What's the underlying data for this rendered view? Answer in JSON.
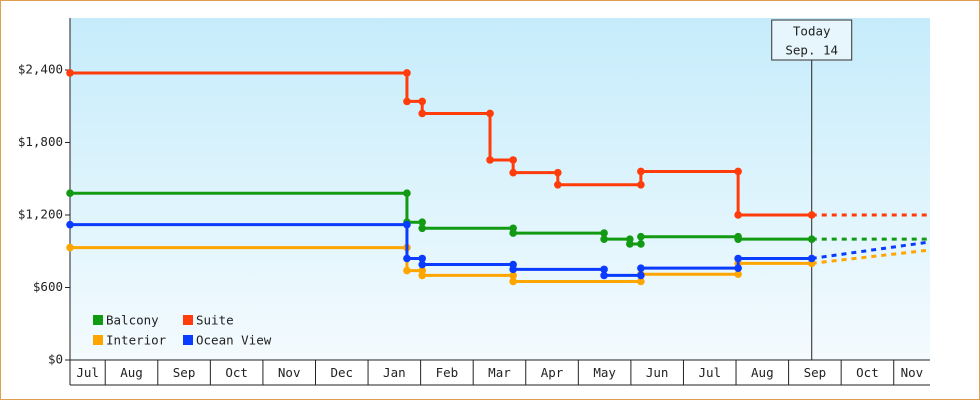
{
  "chart_data": {
    "type": "line",
    "step": true,
    "ylim": [
      0,
      2830
    ],
    "yticks": [
      {
        "value": 0,
        "label": "$0"
      },
      {
        "value": 600,
        "label": "$600"
      },
      {
        "value": 1200,
        "label": "$1,200"
      },
      {
        "value": 1800,
        "label": "$1,800"
      },
      {
        "value": 2400,
        "label": "$2,400"
      }
    ],
    "xlim": [
      0.33,
      16.69
    ],
    "xticks": [
      {
        "value": 0,
        "label": "Jul"
      },
      {
        "value": 1,
        "label": "Aug"
      },
      {
        "value": 2,
        "label": "Sep"
      },
      {
        "value": 3,
        "label": "Oct"
      },
      {
        "value": 4,
        "label": "Nov"
      },
      {
        "value": 5,
        "label": "Dec"
      },
      {
        "value": 6,
        "label": "Jan"
      },
      {
        "value": 7,
        "label": "Feb"
      },
      {
        "value": 8,
        "label": "Mar"
      },
      {
        "value": 9,
        "label": "Apr"
      },
      {
        "value": 10,
        "label": "May"
      },
      {
        "value": 11,
        "label": "Jun"
      },
      {
        "value": 12,
        "label": "Jul"
      },
      {
        "value": 13,
        "label": "Aug"
      },
      {
        "value": 14,
        "label": "Sep"
      },
      {
        "value": 15,
        "label": "Oct"
      },
      {
        "value": 16,
        "label": "Nov"
      }
    ],
    "annotation": {
      "x": 14.44,
      "lines": [
        "Today",
        "Sep. 14"
      ]
    },
    "series": [
      {
        "name": "Balcony",
        "color": "#139a13",
        "x": [
          0.33,
          6.74,
          6.74,
          7.03,
          7.03,
          8.76,
          8.76,
          10.49,
          10.49,
          10.98,
          10.98,
          11.19,
          11.19,
          13.04,
          13.04,
          14.44
        ],
        "values": [
          1380,
          1380,
          1140,
          1140,
          1090,
          1090,
          1050,
          1050,
          1000,
          1000,
          960,
          960,
          1020,
          1020,
          1000,
          1000
        ],
        "forecast": {
          "x": [
            14.44,
            16.69
          ],
          "values": [
            1000,
            1000
          ]
        }
      },
      {
        "name": "Suite",
        "color": "#ff3c0a",
        "x": [
          0.33,
          6.74,
          6.74,
          7.03,
          7.03,
          8.32,
          8.32,
          8.76,
          8.76,
          9.61,
          9.61,
          11.19,
          11.19,
          13.04,
          13.04,
          14.44
        ],
        "values": [
          2375,
          2375,
          2140,
          2140,
          2040,
          2040,
          1655,
          1655,
          1550,
          1550,
          1450,
          1450,
          1560,
          1560,
          1200,
          1200
        ],
        "forecast": {
          "x": [
            14.44,
            16.69
          ],
          "values": [
            1200,
            1200
          ]
        }
      },
      {
        "name": "Interior",
        "color": "#ffa500",
        "x": [
          0.33,
          6.74,
          6.74,
          7.03,
          7.03,
          8.76,
          8.76,
          11.19,
          11.19,
          13.04,
          13.04,
          14.44
        ],
        "values": [
          930,
          930,
          740,
          740,
          700,
          700,
          650,
          650,
          710,
          710,
          800,
          800
        ],
        "forecast": {
          "x": [
            14.44,
            16.69
          ],
          "values": [
            800,
            910
          ]
        }
      },
      {
        "name": "Ocean View",
        "color": "#0a3cff",
        "x": [
          0.33,
          6.74,
          6.74,
          7.03,
          7.03,
          8.76,
          8.76,
          10.49,
          10.49,
          11.19,
          11.19,
          13.04,
          13.04,
          14.44
        ],
        "values": [
          1120,
          1120,
          840,
          840,
          790,
          790,
          750,
          750,
          700,
          700,
          760,
          760,
          840,
          840
        ],
        "forecast": {
          "x": [
            14.44,
            16.69
          ],
          "values": [
            840,
            977
          ]
        }
      }
    ]
  }
}
